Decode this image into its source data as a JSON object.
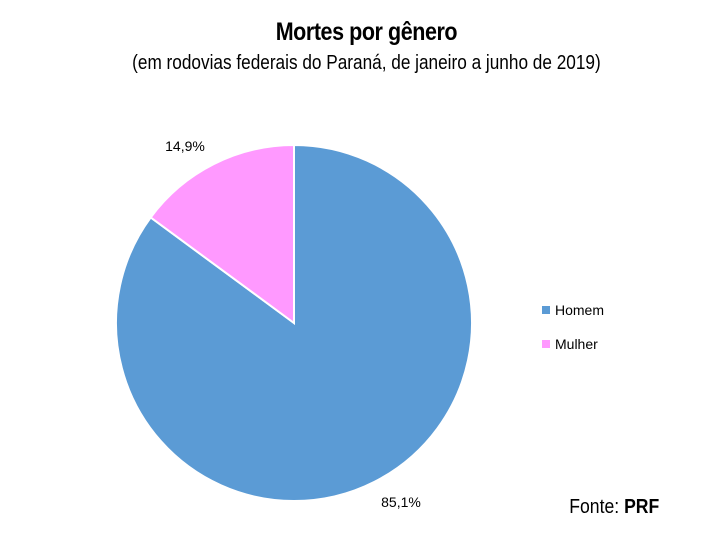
{
  "chart_data": {
    "type": "pie",
    "title": "Mortes por gênero",
    "subtitle": "(em rodovias federais do Paraná, de janeiro a junho de 2019)",
    "slices": [
      {
        "name": "Homem",
        "value": 85.1,
        "label": "85,1%",
        "color": "#5b9bd5"
      },
      {
        "name": "Mulher",
        "value": 14.9,
        "label": "14,9%",
        "color": "#ff99ff"
      }
    ],
    "legend": "right"
  },
  "source": {
    "prefix": "Fonte:",
    "name": "PRF"
  }
}
